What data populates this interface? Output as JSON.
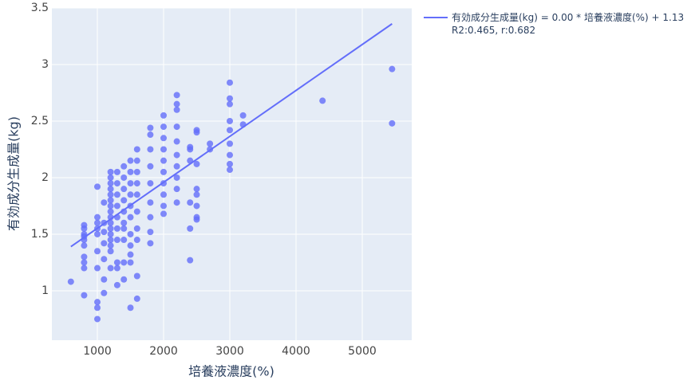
{
  "chart_data": {
    "type": "scatter",
    "x_label": "培養液濃度(%)",
    "y_label": "有効成分生成量(kg)",
    "color": "#636efa",
    "x": [
      600,
      800,
      800,
      800,
      800,
      800,
      800,
      800,
      800,
      800,
      800,
      1000,
      1000,
      1000,
      1000,
      1000,
      1000,
      1000,
      1000,
      1000,
      1000,
      1100,
      1100,
      1100,
      1100,
      1100,
      1100,
      1100,
      1200,
      1200,
      1200,
      1200,
      1200,
      1200,
      1200,
      1200,
      1200,
      1200,
      1200,
      1200,
      1200,
      1200,
      1200,
      1200,
      1300,
      1300,
      1300,
      1300,
      1300,
      1300,
      1300,
      1300,
      1300,
      1300,
      1400,
      1400,
      1400,
      1400,
      1400,
      1400,
      1400,
      1400,
      1400,
      1400,
      1500,
      1500,
      1500,
      1500,
      1500,
      1500,
      1500,
      1500,
      1500,
      1500,
      1500,
      1600,
      1600,
      1600,
      1600,
      1600,
      1600,
      1600,
      1600,
      1600,
      1600,
      1800,
      1800,
      1800,
      1800,
      1800,
      1800,
      1800,
      1800,
      1800,
      2000,
      2000,
      2000,
      2000,
      2000,
      2000,
      2000,
      2000,
      2000,
      2000,
      2200,
      2200,
      2200,
      2200,
      2200,
      2200,
      2200,
      2200,
      2200,
      2200,
      2400,
      2400,
      2400,
      2400,
      2400,
      2400,
      2500,
      2500,
      2500,
      2500,
      2500,
      2500,
      2500,
      2500,
      2700,
      2700,
      3000,
      3000,
      3000,
      3000,
      3000,
      3000,
      3000,
      3000,
      3000,
      3200,
      3200,
      4400,
      5450,
      5450
    ],
    "values": [
      1.08,
      0.96,
      1.2,
      1.25,
      1.3,
      1.4,
      1.45,
      1.5,
      1.55,
      1.58,
      1.48,
      0.75,
      0.85,
      0.9,
      1.2,
      1.35,
      1.5,
      1.6,
      1.65,
      1.92,
      1.55,
      0.98,
      1.1,
      1.28,
      1.42,
      1.52,
      1.6,
      1.78,
      1.2,
      1.35,
      1.45,
      1.55,
      1.6,
      1.65,
      1.7,
      1.75,
      1.8,
      1.85,
      1.9,
      1.95,
      2.0,
      2.05,
      1.5,
      1.4,
      1.05,
      1.2,
      1.25,
      1.45,
      1.55,
      1.65,
      1.75,
      1.85,
      1.95,
      2.05,
      1.1,
      1.25,
      1.45,
      1.6,
      1.7,
      1.8,
      1.9,
      2.0,
      2.1,
      1.55,
      0.85,
      1.25,
      1.32,
      1.5,
      1.65,
      1.75,
      1.85,
      1.95,
      2.05,
      2.15,
      1.4,
      0.93,
      1.13,
      1.45,
      1.55,
      1.7,
      1.85,
      1.95,
      2.05,
      2.15,
      2.25,
      1.42,
      1.52,
      1.65,
      1.78,
      1.95,
      2.1,
      2.25,
      2.38,
      2.44,
      1.68,
      1.75,
      1.85,
      1.95,
      2.05,
      2.15,
      2.25,
      2.35,
      2.45,
      2.55,
      1.78,
      1.9,
      2.0,
      2.1,
      2.2,
      2.32,
      2.45,
      2.6,
      2.65,
      2.73,
      1.27,
      1.55,
      1.78,
      2.15,
      2.25,
      2.27,
      1.63,
      1.65,
      1.75,
      1.85,
      1.9,
      2.12,
      2.4,
      2.42,
      2.25,
      2.3,
      2.07,
      2.12,
      2.2,
      2.3,
      2.42,
      2.5,
      2.65,
      2.7,
      2.84,
      2.47,
      2.55,
      2.68,
      2.48,
      2.96
    ],
    "trendline": {
      "name": "有効成分生成量(kg) = 0.00 * 培養液濃度(%) + 1.13\nR2:0.465, r:0.682",
      "color": "#636efa",
      "x": [
        600,
        5450
      ],
      "values": [
        1.39,
        3.36
      ]
    },
    "xlim": [
      313,
      5747
    ],
    "ylim": [
      0.563,
      3.5
    ],
    "xticks": [
      1000,
      2000,
      3000,
      4000,
      5000
    ],
    "yticks": [
      1,
      1.5,
      2,
      2.5,
      3,
      3.5
    ],
    "grid": true,
    "legend": "right"
  }
}
